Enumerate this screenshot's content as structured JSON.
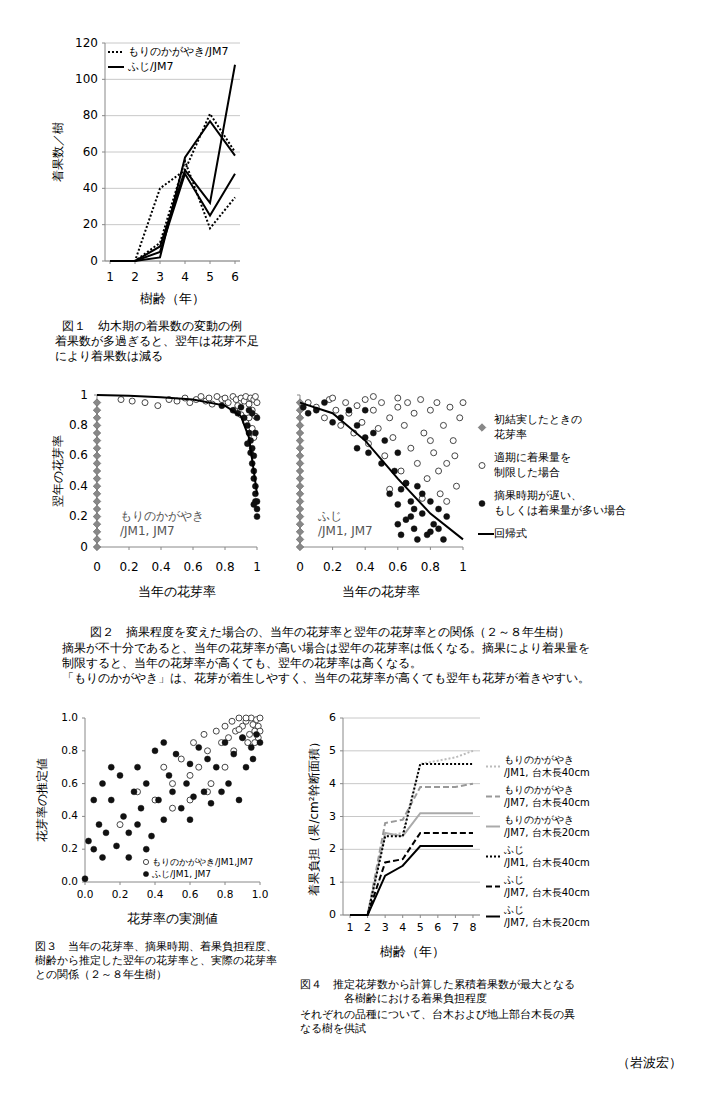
{
  "chart_data": [
    {
      "type": "line",
      "title": "図１　幼木期の着果数の変動の例",
      "subtitle": "着果数が多過ぎると、翌年は花芽不足\nにより着果数は減る",
      "x_label": "樹齢（年）",
      "y_label": "着果数／樹",
      "x": [
        1,
        2,
        3,
        4,
        5,
        6
      ],
      "xlim": [
        0.8,
        6.2
      ],
      "xticks": [
        1,
        2,
        3,
        4,
        5,
        6
      ],
      "ylim": [
        0,
        120
      ],
      "yticks": [
        0,
        20,
        40,
        60,
        80,
        100,
        120
      ],
      "grid": true,
      "legend": "top-left",
      "series": [
        {
          "name": "もりのかがやき/JM7",
          "color": "#000000",
          "line_style": "dotted",
          "values": [
            0,
            0,
            40,
            50,
            81,
            60
          ]
        },
        {
          "name": "もりのかがやき/JM7",
          "color": "#000000",
          "line_style": "dotted",
          "values": [
            0,
            0,
            10,
            55,
            18,
            35
          ]
        },
        {
          "name": "ふじ/JM7",
          "color": "#000000",
          "line_style": "solid",
          "values": [
            0,
            0,
            2,
            57,
            77,
            58
          ]
        },
        {
          "name": "ふじ/JM7",
          "color": "#000000",
          "line_style": "solid",
          "values": [
            0,
            0,
            8,
            50,
            32,
            108
          ]
        },
        {
          "name": "ふじ/JM7",
          "color": "#000000",
          "line_style": "solid",
          "values": [
            0,
            0,
            5,
            48,
            25,
            48
          ]
        }
      ]
    },
    {
      "type": "scatter",
      "title": "図２　摘果程度を変えた場合の、当年の花芽率と翌年の花芽率との関係（２～８年生樹）",
      "subtitle": "摘果が不十分であると、当年の花芽率が高い場合は翌年の花芽率は低くなる。摘果により着果量を\n制限すると、当年の花芽率が高くても、翌年の花芽率は高くなる。\n「もりのかがやき」は、花芽が着生しやすく、当年の花芽率が高くても翌年も花芽が着きやすい。",
      "x_label": "当年の花芽率",
      "y_label": "翌年の花芽率",
      "annotation": "もりのかがやき\n/JM1, JM7",
      "xlim": [
        0,
        1
      ],
      "xticks": [
        0,
        0.2,
        0.4,
        0.6,
        0.8,
        1
      ],
      "ylim": [
        0,
        1
      ],
      "yticks": [
        0,
        0.2,
        0.4,
        0.6,
        0.8,
        1
      ],
      "series": [
        {
          "marker": "diamond",
          "color": "#888888",
          "x": [
            0,
            0,
            0,
            0,
            0,
            0,
            0,
            0,
            0,
            0,
            0,
            0,
            0,
            0,
            0,
            0,
            0,
            0,
            0,
            0
          ],
          "values": [
            0,
            0.05,
            0.1,
            0.15,
            0.2,
            0.25,
            0.3,
            0.35,
            0.4,
            0.45,
            0.5,
            0.55,
            0.6,
            0.65,
            0.7,
            0.75,
            0.8,
            0.85,
            0.9,
            0.95
          ]
        },
        {
          "marker": "open-circle",
          "color": "#333333",
          "x": [
            0.15,
            0.22,
            0.3,
            0.38,
            0.45,
            0.5,
            0.55,
            0.58,
            0.62,
            0.65,
            0.68,
            0.7,
            0.72,
            0.75,
            0.78,
            0.8,
            0.82,
            0.85,
            0.87,
            0.9,
            0.92,
            0.93,
            0.95,
            0.96,
            0.97,
            0.98,
            0.99,
            0.9,
            0.93,
            0.95,
            0.97,
            0.98,
            0.86,
            0.88,
            1.0,
            0.99
          ],
          "values": [
            0.97,
            0.96,
            0.95,
            0.93,
            0.97,
            0.96,
            0.98,
            0.95,
            0.97,
            0.99,
            0.96,
            0.98,
            0.94,
            0.99,
            0.97,
            0.98,
            0.95,
            0.99,
            0.97,
            0.98,
            0.96,
            0.99,
            0.94,
            0.98,
            0.9,
            0.97,
            0.99,
            0.87,
            0.82,
            0.85,
            0.78,
            0.72,
            0.9,
            0.93,
            0.95,
            0.86
          ]
        },
        {
          "marker": "filled-circle",
          "color": "#111111",
          "x": [
            0.78,
            0.85,
            0.88,
            0.9,
            0.92,
            0.94,
            0.95,
            0.96,
            0.97,
            0.97,
            0.98,
            0.98,
            0.99,
            0.99,
            0.99,
            1.0,
            1.0,
            0.98,
            0.96,
            0.99,
            1.0,
            0.97,
            0.95,
            1.0,
            0.98,
            0.94
          ],
          "values": [
            0.93,
            0.9,
            0.88,
            0.92,
            0.85,
            0.8,
            0.75,
            0.7,
            0.65,
            0.55,
            0.5,
            0.45,
            0.4,
            0.35,
            0.3,
            0.25,
            0.2,
            0.6,
            0.62,
            0.75,
            0.85,
            0.88,
            0.9,
            0.3,
            0.28,
            0.68
          ]
        },
        {
          "type": "line",
          "color": "#000000",
          "line_style": "solid",
          "x": [
            0,
            0.2,
            0.4,
            0.6,
            0.8,
            0.9,
            0.95,
            1
          ],
          "values": [
            1,
            0.995,
            0.985,
            0.97,
            0.93,
            0.86,
            0.72,
            0.35
          ]
        }
      ]
    },
    {
      "type": "scatter",
      "x_label": "当年の花芽率",
      "annotation": "ふじ\n/JM1, JM7",
      "xlim": [
        0,
        1
      ],
      "xticks": [
        0,
        0.2,
        0.4,
        0.6,
        0.8,
        1
      ],
      "ylim": [
        0,
        1
      ],
      "yticks": [
        0,
        0.2,
        0.4,
        0.6,
        0.8,
        1
      ],
      "tick_labels": "x",
      "legend": "right",
      "series": [
        {
          "name": "初結実したときの\n花芽率",
          "marker": "diamond",
          "color": "#888888",
          "x": [
            0,
            0,
            0,
            0,
            0,
            0,
            0,
            0,
            0,
            0,
            0,
            0,
            0,
            0,
            0,
            0,
            0,
            0,
            0,
            0
          ],
          "values": [
            0,
            0.05,
            0.1,
            0.15,
            0.2,
            0.25,
            0.3,
            0.35,
            0.4,
            0.45,
            0.5,
            0.55,
            0.6,
            0.65,
            0.7,
            0.75,
            0.8,
            0.85,
            0.9,
            0.95
          ]
        },
        {
          "name": "適期に着果量を\n制限した場合",
          "marker": "open-circle",
          "color": "#333333",
          "x": [
            0.05,
            0.1,
            0.15,
            0.18,
            0.22,
            0.25,
            0.28,
            0.3,
            0.33,
            0.35,
            0.38,
            0.4,
            0.42,
            0.45,
            0.48,
            0.5,
            0.52,
            0.55,
            0.57,
            0.6,
            0.62,
            0.64,
            0.66,
            0.68,
            0.7,
            0.72,
            0.74,
            0.76,
            0.78,
            0.8,
            0.82,
            0.84,
            0.86,
            0.88,
            0.9,
            0.92,
            0.94,
            0.96,
            0.98,
            1.0,
            0.85,
            0.9,
            0.95,
            0.8,
            0.65,
            0.55,
            0.75,
            0.6,
            0.45,
            0.2
          ],
          "values": [
            0.95,
            0.92,
            0.85,
            0.97,
            0.9,
            0.8,
            0.95,
            0.88,
            0.75,
            0.93,
            0.82,
            0.97,
            0.68,
            0.9,
            0.78,
            0.95,
            0.6,
            0.85,
            0.72,
            0.92,
            0.5,
            0.8,
            0.95,
            0.65,
            0.88,
            0.55,
            0.97,
            0.75,
            0.45,
            0.9,
            0.62,
            0.95,
            0.35,
            0.8,
            0.55,
            0.92,
            0.7,
            0.4,
            0.85,
            0.95,
            0.5,
            0.3,
            0.6,
            0.7,
            0.42,
            0.38,
            0.32,
            0.98,
            0.99,
            0.98
          ]
        },
        {
          "name": "摘果時期が遅い、\nもしくは着果量が多い場合",
          "marker": "filled-circle",
          "color": "#111111",
          "x": [
            0.02,
            0.05,
            0.1,
            0.15,
            0.2,
            0.25,
            0.3,
            0.35,
            0.4,
            0.42,
            0.45,
            0.5,
            0.52,
            0.55,
            0.58,
            0.6,
            0.62,
            0.65,
            0.68,
            0.7,
            0.72,
            0.75,
            0.78,
            0.8,
            0.82,
            0.85,
            0.88,
            0.9,
            0.75,
            0.7,
            0.65,
            0.68,
            0.6,
            0.8,
            0.62,
            0.85,
            0.72,
            0.4,
            0.35,
            0.6
          ],
          "values": [
            0.92,
            0.88,
            0.9,
            0.95,
            0.82,
            0.85,
            0.9,
            0.8,
            0.72,
            0.62,
            0.75,
            0.55,
            0.7,
            0.35,
            0.5,
            0.28,
            0.38,
            0.18,
            0.3,
            0.12,
            0.4,
            0.22,
            0.08,
            0.3,
            0.15,
            0.25,
            0.05,
            0.2,
            0.35,
            0.25,
            0.42,
            0.2,
            0.15,
            0.1,
            0.08,
            0.12,
            0.05,
            0.9,
            0.65,
            0.62
          ]
        },
        {
          "name": "回帰式",
          "type": "line",
          "color": "#000000",
          "line_style": "solid",
          "x": [
            0,
            0.2,
            0.4,
            0.6,
            0.8,
            1
          ],
          "values": [
            0.95,
            0.88,
            0.7,
            0.45,
            0.22,
            0.05
          ]
        }
      ]
    },
    {
      "type": "scatter",
      "title": "図３　当年の花芽率、摘果時期、着果負担程度、\n樹齢から推定した翌年の花芽率と、実際の花芽率\nとの関係（２～８年生樹）",
      "x_label": "花芽率の実測値",
      "y_label": "花芽率の推定値",
      "xlim": [
        0,
        1
      ],
      "xticks": [
        {
          "value": 0,
          "label": "0.0"
        },
        0.2,
        0.4,
        0.6,
        0.8,
        {
          "value": 1,
          "label": "1.0"
        }
      ],
      "ylim": [
        0,
        1
      ],
      "yticks": [
        {
          "value": 0,
          "label": "0.0"
        },
        0.2,
        0.4,
        0.6,
        0.8,
        {
          "value": 1,
          "label": "1.0"
        }
      ],
      "legend": "bottom-right",
      "series": [
        {
          "name": "もりのかがやき/JM1,JM7",
          "marker": "open-circle",
          "color": "#333333",
          "x": [
            0.3,
            0.4,
            0.45,
            0.5,
            0.55,
            0.6,
            0.62,
            0.65,
            0.68,
            0.7,
            0.72,
            0.75,
            0.78,
            0.8,
            0.82,
            0.84,
            0.86,
            0.88,
            0.9,
            0.92,
            0.94,
            0.95,
            0.96,
            0.97,
            0.98,
            0.99,
            1.0,
            1.0,
            0.85,
            0.9,
            0.93,
            0.97,
            0.2,
            0.5,
            0.6,
            0.8,
            0.7,
            0.99,
            0.88,
            0.92
          ],
          "values": [
            0.55,
            0.5,
            0.7,
            0.6,
            0.75,
            0.65,
            0.85,
            0.7,
            0.9,
            0.8,
            0.6,
            0.92,
            0.85,
            0.95,
            0.88,
            0.98,
            0.92,
            1.0,
            0.95,
            0.98,
            0.9,
            1.0,
            0.96,
            0.92,
            0.99,
            0.95,
            1.0,
            0.92,
            0.8,
            0.88,
            0.85,
            0.85,
            0.35,
            0.45,
            0.5,
            0.7,
            0.55,
            0.88,
            0.93,
            1.0
          ]
        },
        {
          "name": "ふじ/JM1, JM7",
          "marker": "filled-circle",
          "color": "#111111",
          "x": [
            0.0,
            0.02,
            0.05,
            0.08,
            0.1,
            0.12,
            0.15,
            0.18,
            0.2,
            0.22,
            0.25,
            0.28,
            0.3,
            0.32,
            0.35,
            0.38,
            0.4,
            0.42,
            0.45,
            0.48,
            0.5,
            0.52,
            0.55,
            0.58,
            0.6,
            0.62,
            0.65,
            0.68,
            0.7,
            0.72,
            0.75,
            0.78,
            0.8,
            0.82,
            0.85,
            0.88,
            0.9,
            0.92,
            0.95,
            0.98,
            1.0,
            0.05,
            0.15,
            0.25,
            0.35,
            0.1,
            0.3,
            0.45,
            0.6,
            0.96
          ],
          "values": [
            0.02,
            0.25,
            0.2,
            0.35,
            0.15,
            0.3,
            0.5,
            0.22,
            0.65,
            0.4,
            0.3,
            0.55,
            0.7,
            0.45,
            0.6,
            0.28,
            0.8,
            0.5,
            0.38,
            0.65,
            0.55,
            0.78,
            0.45,
            0.6,
            0.72,
            0.52,
            0.82,
            0.55,
            0.75,
            0.48,
            0.7,
            0.55,
            0.85,
            0.6,
            0.78,
            0.5,
            0.88,
            0.7,
            0.82,
            0.9,
            0.85,
            0.5,
            0.7,
            0.15,
            0.2,
            0.6,
            0.35,
            0.85,
            0.38,
            0.75
          ]
        }
      ]
    },
    {
      "type": "line",
      "title": "図４　推定花芽数から計算した累積着果数が最大となる\n　　　　各樹齢における着果負担程度",
      "subtitle": "それぞれの品種について、台木および地上部台木長の異\nなる樹を供試",
      "x_label": "樹齢（年）",
      "y_label": "着果負担（果/cm²幹断面積）",
      "x": [
        1,
        2,
        3,
        4,
        5,
        6,
        7,
        8
      ],
      "xlim": [
        0.6,
        8.4
      ],
      "xticks": [
        1,
        2,
        3,
        4,
        5,
        6,
        7,
        8
      ],
      "ylim": [
        0,
        6
      ],
      "yticks": [
        0,
        1,
        2,
        3,
        4,
        5,
        6
      ],
      "grid": true,
      "legend": "right",
      "series": [
        {
          "name": "もりのかがやき\n/JM1, 台木長40cm",
          "color": "#bbbbbb",
          "line_style": "dotted",
          "values": [
            0,
            0,
            2.4,
            2.5,
            4.6,
            4.7,
            4.8,
            5.0
          ]
        },
        {
          "name": "もりのかがやき\n/JM7, 台木長40cm",
          "color": "#999999",
          "line_style": "dashed",
          "values": [
            0,
            0,
            2.8,
            2.9,
            3.9,
            3.9,
            3.9,
            4.0
          ]
        },
        {
          "name": "もりのかがやき\n/JM7, 台木長20cm",
          "color": "#aaaaaa",
          "line_style": "solid",
          "values": [
            0,
            0,
            2.5,
            2.4,
            3.1,
            3.1,
            3.1,
            3.1
          ]
        },
        {
          "name": "ふじ\n/JM1, 台木長40cm",
          "color": "#000000",
          "line_style": "dotted",
          "values": [
            0,
            0,
            2.4,
            2.4,
            4.6,
            4.6,
            4.6,
            4.6
          ]
        },
        {
          "name": "ふじ\n/JM7, 台木長40cm",
          "color": "#000000",
          "line_style": "dashed",
          "values": [
            0,
            0,
            1.6,
            1.7,
            2.5,
            2.5,
            2.5,
            2.5
          ]
        },
        {
          "name": "ふじ\n/JM7, 台木長20cm",
          "color": "#000000",
          "line_style": "solid",
          "values": [
            0,
            0,
            1.2,
            1.5,
            2.1,
            2.1,
            2.1,
            2.1
          ]
        }
      ]
    }
  ],
  "footer": {
    "author": "（岩波宏）"
  }
}
